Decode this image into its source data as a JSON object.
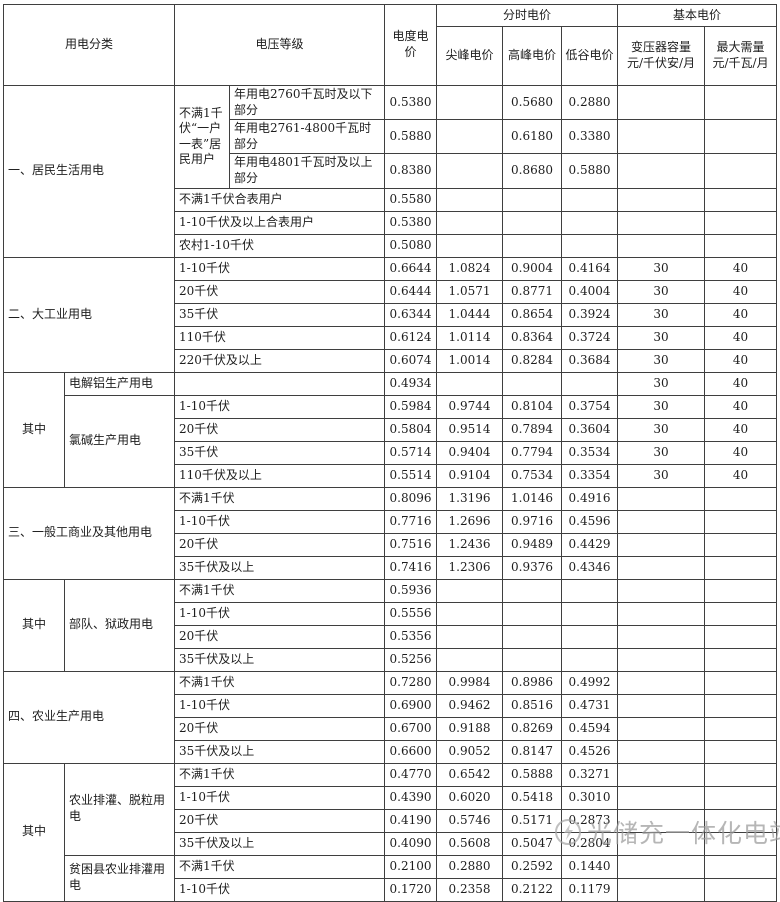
{
  "watermark": {
    "text": "光储充一体化电站"
  },
  "table": {
    "header_rows": [
      [
        {
          "t": "用电分类",
          "cs": 2,
          "rs": 2,
          "n": "col-header-usage-category"
        },
        {
          "t": "电压等级",
          "cs": 2,
          "rs": 2,
          "n": "col-header-voltage-level"
        },
        {
          "t": "电度电价",
          "rs": 2,
          "n": "col-header-energy-price"
        },
        {
          "t": "分时电价",
          "cs": 3,
          "n": "col-header-tou-price-group"
        },
        {
          "t": "基本电价",
          "cs": 2,
          "n": "col-header-basic-price-group"
        }
      ],
      [
        {
          "t": "尖峰电价",
          "n": "col-header-sharp-peak-price"
        },
        {
          "t": "高峰电价",
          "n": "col-header-peak-price"
        },
        {
          "t": "低谷电价",
          "n": "col-header-valley-price"
        },
        {
          "t": "变压器容量\n元/千伏安/月",
          "n": "col-header-transformer-capacity"
        },
        {
          "t": "最大需量\n元/千瓦/月",
          "n": "col-header-max-demand"
        }
      ]
    ],
    "rows": [
      [
        {
          "t": "一、居民生活用电",
          "cs": 2,
          "rs": 6,
          "l": 1,
          "n": "section-label-residential"
        },
        {
          "t": "不满1千伏“一户一表”居民用户",
          "rs": 3,
          "l": 1,
          "n": "voltage-cell"
        },
        {
          "t": "年用电2760千瓦时及以下部分",
          "l": 1,
          "n": "voltage-cell"
        },
        {
          "t": "0.5380"
        },
        {
          "t": ""
        },
        {
          "t": "0.5680"
        },
        {
          "t": "0.2880"
        },
        {
          "t": ""
        },
        {
          "t": ""
        }
      ],
      [
        {
          "t": "年用电2761-4800千瓦时部分",
          "l": 1,
          "n": "voltage-cell"
        },
        {
          "t": "0.5880"
        },
        {
          "t": ""
        },
        {
          "t": "0.6180"
        },
        {
          "t": "0.3380"
        },
        {
          "t": ""
        },
        {
          "t": ""
        }
      ],
      [
        {
          "t": "年用电4801千瓦时及以上部分",
          "l": 1,
          "n": "voltage-cell"
        },
        {
          "t": "0.8380"
        },
        {
          "t": ""
        },
        {
          "t": "0.8680"
        },
        {
          "t": "0.5880"
        },
        {
          "t": ""
        },
        {
          "t": ""
        }
      ],
      [
        {
          "t": "不满1千伏合表用户",
          "cs": 2,
          "l": 1,
          "n": "voltage-cell"
        },
        {
          "t": "0.5580"
        },
        {
          "t": ""
        },
        {
          "t": ""
        },
        {
          "t": ""
        },
        {
          "t": ""
        },
        {
          "t": ""
        }
      ],
      [
        {
          "t": "1-10千伏及以上合表用户",
          "cs": 2,
          "l": 1,
          "n": "voltage-cell"
        },
        {
          "t": "0.5380"
        },
        {
          "t": ""
        },
        {
          "t": ""
        },
        {
          "t": ""
        },
        {
          "t": ""
        },
        {
          "t": ""
        }
      ],
      [
        {
          "t": "农村1-10千伏",
          "cs": 2,
          "l": 1,
          "n": "voltage-cell"
        },
        {
          "t": "0.5080"
        },
        {
          "t": ""
        },
        {
          "t": ""
        },
        {
          "t": ""
        },
        {
          "t": ""
        },
        {
          "t": ""
        }
      ],
      [
        {
          "t": "二、大工业用电",
          "cs": 2,
          "rs": 5,
          "l": 1,
          "n": "section-label-large-industry"
        },
        {
          "t": "1-10千伏",
          "cs": 2,
          "l": 1,
          "n": "voltage-cell"
        },
        {
          "t": "0.6644"
        },
        {
          "t": "1.0824"
        },
        {
          "t": "0.9004"
        },
        {
          "t": "0.4164"
        },
        {
          "t": "30"
        },
        {
          "t": "40"
        }
      ],
      [
        {
          "t": "20千伏",
          "cs": 2,
          "l": 1,
          "n": "voltage-cell"
        },
        {
          "t": "0.6444"
        },
        {
          "t": "1.0571"
        },
        {
          "t": "0.8771"
        },
        {
          "t": "0.4004"
        },
        {
          "t": "30"
        },
        {
          "t": "40"
        }
      ],
      [
        {
          "t": "35千伏",
          "cs": 2,
          "l": 1,
          "n": "voltage-cell"
        },
        {
          "t": "0.6344"
        },
        {
          "t": "1.0444"
        },
        {
          "t": "0.8654"
        },
        {
          "t": "0.3924"
        },
        {
          "t": "30"
        },
        {
          "t": "40"
        }
      ],
      [
        {
          "t": "110千伏",
          "cs": 2,
          "l": 1,
          "n": "voltage-cell"
        },
        {
          "t": "0.6124"
        },
        {
          "t": "1.0114"
        },
        {
          "t": "0.8364"
        },
        {
          "t": "0.3724"
        },
        {
          "t": "30"
        },
        {
          "t": "40"
        }
      ],
      [
        {
          "t": "220千伏及以上",
          "cs": 2,
          "l": 1,
          "n": "voltage-cell"
        },
        {
          "t": "0.6074"
        },
        {
          "t": "1.0014"
        },
        {
          "t": "0.8284"
        },
        {
          "t": "0.3684"
        },
        {
          "t": "30"
        },
        {
          "t": "40"
        }
      ],
      [
        {
          "t": "其中",
          "rs": 5,
          "n": "among-which-cell"
        },
        {
          "t": "电解铝生产用电",
          "l": 1,
          "n": "subcategory-cell"
        },
        {
          "t": "",
          "cs": 2
        },
        {
          "t": "0.4934"
        },
        {
          "t": ""
        },
        {
          "t": ""
        },
        {
          "t": ""
        },
        {
          "t": "30"
        },
        {
          "t": "40"
        }
      ],
      [
        {
          "t": "氯碱生产用电",
          "rs": 4,
          "l": 1,
          "n": "subcategory-cell"
        },
        {
          "t": "1-10千伏",
          "cs": 2,
          "l": 1,
          "n": "voltage-cell"
        },
        {
          "t": "0.5984"
        },
        {
          "t": "0.9744"
        },
        {
          "t": "0.8104"
        },
        {
          "t": "0.3754"
        },
        {
          "t": "30"
        },
        {
          "t": "40"
        }
      ],
      [
        {
          "t": "20千伏",
          "cs": 2,
          "l": 1,
          "n": "voltage-cell"
        },
        {
          "t": "0.5804"
        },
        {
          "t": "0.9514"
        },
        {
          "t": "0.7894"
        },
        {
          "t": "0.3604"
        },
        {
          "t": "30"
        },
        {
          "t": "40"
        }
      ],
      [
        {
          "t": "35千伏",
          "cs": 2,
          "l": 1,
          "n": "voltage-cell"
        },
        {
          "t": "0.5714"
        },
        {
          "t": "0.9404"
        },
        {
          "t": "0.7794"
        },
        {
          "t": "0.3534"
        },
        {
          "t": "30"
        },
        {
          "t": "40"
        }
      ],
      [
        {
          "t": "110千伏及以上",
          "cs": 2,
          "l": 1,
          "n": "voltage-cell"
        },
        {
          "t": "0.5514"
        },
        {
          "t": "0.9104"
        },
        {
          "t": "0.7534"
        },
        {
          "t": "0.3354"
        },
        {
          "t": "30"
        },
        {
          "t": "40"
        }
      ],
      [
        {
          "t": "三、一般工商业及其他用电",
          "cs": 2,
          "rs": 4,
          "l": 1,
          "n": "section-label-general-commercial"
        },
        {
          "t": "不满1千伏",
          "cs": 2,
          "l": 1,
          "n": "voltage-cell"
        },
        {
          "t": "0.8096"
        },
        {
          "t": "1.3196"
        },
        {
          "t": "1.0146"
        },
        {
          "t": "0.4916"
        },
        {
          "t": ""
        },
        {
          "t": ""
        }
      ],
      [
        {
          "t": "1-10千伏",
          "cs": 2,
          "l": 1,
          "n": "voltage-cell"
        },
        {
          "t": "0.7716"
        },
        {
          "t": "1.2696"
        },
        {
          "t": "0.9716"
        },
        {
          "t": "0.4596"
        },
        {
          "t": ""
        },
        {
          "t": ""
        }
      ],
      [
        {
          "t": "20千伏",
          "cs": 2,
          "l": 1,
          "n": "voltage-cell"
        },
        {
          "t": "0.7516"
        },
        {
          "t": "1.2436"
        },
        {
          "t": "0.9489"
        },
        {
          "t": "0.4429"
        },
        {
          "t": ""
        },
        {
          "t": ""
        }
      ],
      [
        {
          "t": "35千伏及以上",
          "cs": 2,
          "l": 1,
          "n": "voltage-cell"
        },
        {
          "t": "0.7416"
        },
        {
          "t": "1.2306"
        },
        {
          "t": "0.9376"
        },
        {
          "t": "0.4346"
        },
        {
          "t": ""
        },
        {
          "t": ""
        }
      ],
      [
        {
          "t": "其中",
          "rs": 4,
          "n": "among-which-cell"
        },
        {
          "t": "部队、狱政用电",
          "rs": 4,
          "l": 1,
          "n": "subcategory-cell"
        },
        {
          "t": "不满1千伏",
          "cs": 2,
          "l": 1,
          "n": "voltage-cell"
        },
        {
          "t": "0.5936"
        },
        {
          "t": ""
        },
        {
          "t": ""
        },
        {
          "t": ""
        },
        {
          "t": ""
        },
        {
          "t": ""
        }
      ],
      [
        {
          "t": "1-10千伏",
          "cs": 2,
          "l": 1,
          "n": "voltage-cell"
        },
        {
          "t": "0.5556"
        },
        {
          "t": ""
        },
        {
          "t": ""
        },
        {
          "t": ""
        },
        {
          "t": ""
        },
        {
          "t": ""
        }
      ],
      [
        {
          "t": "20千伏",
          "cs": 2,
          "l": 1,
          "n": "voltage-cell"
        },
        {
          "t": "0.5356"
        },
        {
          "t": ""
        },
        {
          "t": ""
        },
        {
          "t": ""
        },
        {
          "t": ""
        },
        {
          "t": ""
        }
      ],
      [
        {
          "t": "35千伏及以上",
          "cs": 2,
          "l": 1,
          "n": "voltage-cell"
        },
        {
          "t": "0.5256"
        },
        {
          "t": ""
        },
        {
          "t": ""
        },
        {
          "t": ""
        },
        {
          "t": ""
        },
        {
          "t": ""
        }
      ],
      [
        {
          "t": "四、农业生产用电",
          "cs": 2,
          "rs": 4,
          "l": 1,
          "n": "section-label-agricultural"
        },
        {
          "t": "不满1千伏",
          "cs": 2,
          "l": 1,
          "n": "voltage-cell"
        },
        {
          "t": "0.7280"
        },
        {
          "t": "0.9984"
        },
        {
          "t": "0.8986"
        },
        {
          "t": "0.4992"
        },
        {
          "t": ""
        },
        {
          "t": ""
        }
      ],
      [
        {
          "t": "1-10千伏",
          "cs": 2,
          "l": 1,
          "n": "voltage-cell"
        },
        {
          "t": "0.6900"
        },
        {
          "t": "0.9462"
        },
        {
          "t": "0.8516"
        },
        {
          "t": "0.4731"
        },
        {
          "t": ""
        },
        {
          "t": ""
        }
      ],
      [
        {
          "t": "20千伏",
          "cs": 2,
          "l": 1,
          "n": "voltage-cell"
        },
        {
          "t": "0.6700"
        },
        {
          "t": "0.9188"
        },
        {
          "t": "0.8269"
        },
        {
          "t": "0.4594"
        },
        {
          "t": ""
        },
        {
          "t": ""
        }
      ],
      [
        {
          "t": "35千伏及以上",
          "cs": 2,
          "l": 1,
          "n": "voltage-cell"
        },
        {
          "t": "0.6600"
        },
        {
          "t": "0.9052"
        },
        {
          "t": "0.8147"
        },
        {
          "t": "0.4526"
        },
        {
          "t": ""
        },
        {
          "t": ""
        }
      ],
      [
        {
          "t": "其中",
          "rs": 6,
          "n": "among-which-cell"
        },
        {
          "t": "农业排灌、脱粒用电",
          "rs": 4,
          "l": 1,
          "n": "subcategory-cell"
        },
        {
          "t": "不满1千伏",
          "cs": 2,
          "l": 1,
          "n": "voltage-cell"
        },
        {
          "t": "0.4770"
        },
        {
          "t": "0.6542"
        },
        {
          "t": "0.5888"
        },
        {
          "t": "0.3271"
        },
        {
          "t": ""
        },
        {
          "t": ""
        }
      ],
      [
        {
          "t": "1-10千伏",
          "cs": 2,
          "l": 1,
          "n": "voltage-cell"
        },
        {
          "t": "0.4390"
        },
        {
          "t": "0.6020"
        },
        {
          "t": "0.5418"
        },
        {
          "t": "0.3010"
        },
        {
          "t": ""
        },
        {
          "t": ""
        }
      ],
      [
        {
          "t": "20千伏",
          "cs": 2,
          "l": 1,
          "n": "voltage-cell"
        },
        {
          "t": "0.4190"
        },
        {
          "t": "0.5746"
        },
        {
          "t": "0.5171"
        },
        {
          "t": "0.2873"
        },
        {
          "t": ""
        },
        {
          "t": ""
        }
      ],
      [
        {
          "t": "35千伏及以上",
          "cs": 2,
          "l": 1,
          "n": "voltage-cell"
        },
        {
          "t": "0.4090"
        },
        {
          "t": "0.5608"
        },
        {
          "t": "0.5047"
        },
        {
          "t": "0.2804"
        },
        {
          "t": ""
        },
        {
          "t": ""
        }
      ],
      [
        {
          "t": "贫困县农业排灌用电",
          "rs": 2,
          "l": 1,
          "n": "subcategory-cell"
        },
        {
          "t": "不满1千伏",
          "cs": 2,
          "l": 1,
          "n": "voltage-cell"
        },
        {
          "t": "0.2100"
        },
        {
          "t": "0.2880"
        },
        {
          "t": "0.2592"
        },
        {
          "t": "0.1440"
        },
        {
          "t": ""
        },
        {
          "t": ""
        }
      ],
      [
        {
          "t": "1-10千伏",
          "cs": 2,
          "l": 1,
          "n": "voltage-cell"
        },
        {
          "t": "0.1720"
        },
        {
          "t": "0.2358"
        },
        {
          "t": "0.2122"
        },
        {
          "t": "0.1179"
        },
        {
          "t": ""
        },
        {
          "t": ""
        }
      ]
    ]
  }
}
